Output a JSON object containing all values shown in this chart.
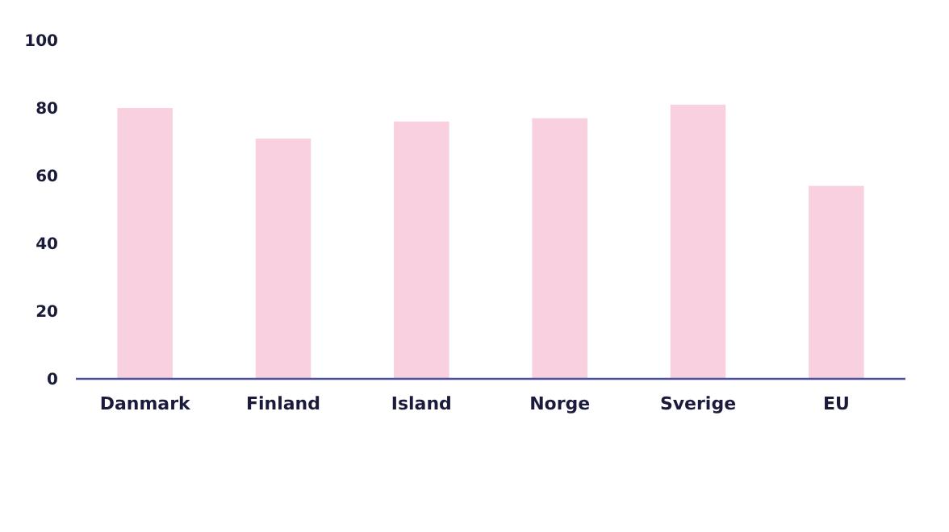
{
  "chart_data": {
    "type": "bar",
    "categories": [
      "Danmark",
      "Finland",
      "Island",
      "Norge",
      "Sverige",
      "EU"
    ],
    "values": [
      80,
      71,
      76,
      77,
      81,
      57
    ],
    "color": "#f9d0df",
    "ylim": [
      0,
      100
    ],
    "yticks": [
      0,
      20,
      40,
      60,
      80,
      100
    ],
    "grid": false
  }
}
